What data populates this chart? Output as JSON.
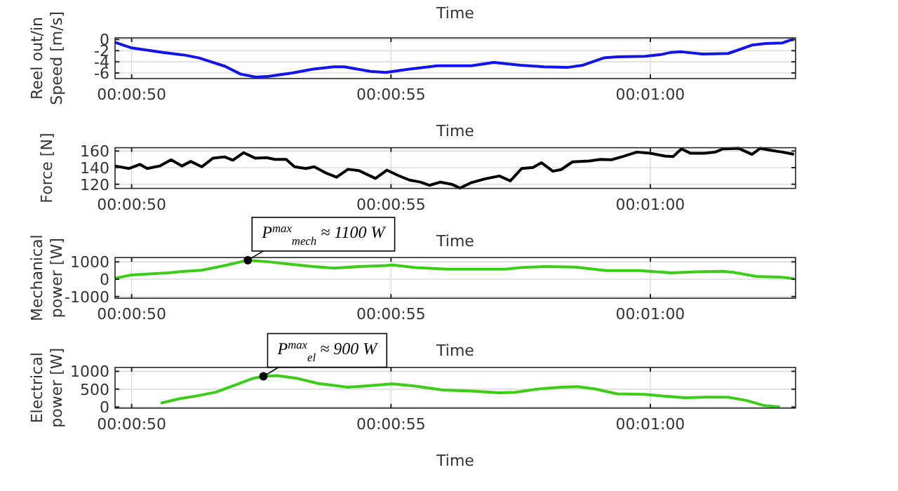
{
  "chart_data": [
    {
      "type": "line",
      "title": "Time",
      "xlabel": "Time",
      "ylabel": "Reel out/in\nSpeed [m/s]",
      "grid": true,
      "xlim": [
        49.68,
        62.8
      ],
      "xticks": [
        {
          "value": 50,
          "label": "00:00:50"
        },
        {
          "value": 55,
          "label": "00:00:55"
        },
        {
          "value": 60,
          "label": "00:01:00"
        }
      ],
      "ylim": [
        -7,
        0.3
      ],
      "yticks": [
        -6,
        -4,
        -2,
        0
      ],
      "x": [
        49.68,
        50,
        50.6,
        51.03,
        51.3,
        51.8,
        52.1,
        52.4,
        52.65,
        53.1,
        53.5,
        53.9,
        54.1,
        54.6,
        54.9,
        55.36,
        55.9,
        56.2,
        56.55,
        56.98,
        57.5,
        57.95,
        58.4,
        58.7,
        59.1,
        59.36,
        59.9,
        60.2,
        60.4,
        60.6,
        61,
        61.5,
        61.96,
        62.23,
        62.55,
        62.7,
        62.77
      ],
      "series": [
        {
          "color": "#1414e6",
          "values": [
            -0.5,
            -1.5,
            -2.3,
            -2.8,
            -3.3,
            -4.8,
            -6.2,
            -6.75,
            -6.6,
            -6,
            -5.3,
            -4.9,
            -4.9,
            -5.7,
            -5.9,
            -5.3,
            -4.7,
            -4.7,
            -4.7,
            -4.1,
            -4.6,
            -4.9,
            -5,
            -4.6,
            -3.3,
            -3.1,
            -3,
            -2.7,
            -2.3,
            -2.2,
            -2.6,
            -2.5,
            -1,
            -0.7,
            -0.6,
            -0.1,
            0
          ]
        }
      ]
    },
    {
      "type": "line",
      "xlabel": "Time",
      "ylabel": "Force [N]",
      "grid": true,
      "xlim": [
        49.68,
        62.8
      ],
      "xticks": [
        {
          "value": 50,
          "label": "00:00:50"
        },
        {
          "value": 55,
          "label": "00:00:55"
        },
        {
          "value": 60,
          "label": "00:01:00"
        }
      ],
      "ylim": [
        115,
        164
      ],
      "yticks": [
        120,
        140,
        160
      ],
      "x": [
        49.68,
        49.95,
        50.16,
        50.3,
        50.54,
        50.76,
        50.97,
        51.14,
        51.35,
        51.57,
        51.79,
        51.95,
        52.16,
        52.38,
        52.6,
        52.76,
        52.98,
        53.14,
        53.36,
        53.52,
        53.73,
        53.95,
        54.17,
        54.38,
        54.7,
        54.92,
        55.14,
        55.36,
        55.57,
        55.74,
        55.95,
        56.17,
        56.33,
        56.55,
        56.82,
        57.09,
        57.3,
        57.52,
        57.74,
        57.9,
        58.12,
        58.28,
        58.5,
        58.82,
        59.04,
        59.25,
        59.47,
        59.74,
        60,
        60.28,
        60.44,
        60.6,
        60.77,
        61.04,
        61.25,
        61.4,
        61.7,
        61.96,
        62.12,
        62.34,
        62.55,
        62.77
      ],
      "series": [
        {
          "color": "#000000",
          "values": [
            142,
            139,
            144,
            139,
            142,
            149.5,
            142,
            147.5,
            141,
            151.5,
            153,
            149,
            158,
            151.5,
            152,
            150,
            150,
            141,
            139,
            141,
            134,
            128.5,
            138,
            136.5,
            127,
            137,
            130.5,
            125,
            122.6,
            118.7,
            122.6,
            120,
            115.4,
            122,
            126.6,
            130,
            124,
            139,
            140.3,
            146,
            135.7,
            137.7,
            147,
            148,
            150,
            149.5,
            153.4,
            158.7,
            157.4,
            154,
            153.4,
            162.6,
            157.4,
            157.4,
            158.7,
            162.6,
            163.3,
            156,
            163.3,
            160.7,
            158.7,
            156
          ]
        }
      ]
    },
    {
      "type": "line",
      "xlabel": "Time",
      "ylabel": "Mechanical\npower [W]",
      "grid": true,
      "xlim": [
        49.68,
        62.8
      ],
      "xticks": [
        {
          "value": 50,
          "label": "00:00:50"
        },
        {
          "value": 55,
          "label": "00:00:55"
        },
        {
          "value": 60,
          "label": "00:01:00"
        }
      ],
      "ylim": [
        -1100,
        1250
      ],
      "yticks": [
        -1000,
        0,
        1000
      ],
      "annotations": [
        {
          "text": "P$^{max}$$_{mech}$ ≈ 1100 W",
          "x": 52.24,
          "y": 1100
        }
      ],
      "x": [
        49.68,
        50,
        50.7,
        51.03,
        51.35,
        51.8,
        52.24,
        52.65,
        53.1,
        53.5,
        53.9,
        54.38,
        54.92,
        55.03,
        55.47,
        56.1,
        56.66,
        57.2,
        57.5,
        57.95,
        58.55,
        58.82,
        59.15,
        59.8,
        60.4,
        60.9,
        61.4,
        61.6,
        62.07,
        62.5,
        62.77
      ],
      "series": [
        {
          "color": "#3dcc1a",
          "values": [
            50,
            250,
            370,
            460,
            520,
            790,
            1100,
            1000,
            850,
            730,
            640,
            730,
            790,
            820,
            670,
            580,
            580,
            580,
            670,
            730,
            700,
            610,
            500,
            500,
            370,
            430,
            460,
            400,
            150,
            120,
            30
          ]
        }
      ]
    },
    {
      "type": "line",
      "xlabel": "Time",
      "ylabel": "Electrical\npower [W]",
      "grid": true,
      "xlim": [
        49.68,
        62.8
      ],
      "xticks": [
        {
          "value": 50,
          "label": "00:00:50"
        },
        {
          "value": 55,
          "label": "00:00:55"
        },
        {
          "value": 60,
          "label": "00:01:00"
        }
      ],
      "ylim": [
        -30,
        1110
      ],
      "yticks": [
        0,
        500,
        1000
      ],
      "annotations": [
        {
          "text": "P$^{max}$$_{el}$ ≈ 900 W",
          "x": 52.54,
          "y": 860
        }
      ],
      "x": [
        50.56,
        50.92,
        51.24,
        51.62,
        52,
        52.33,
        52.54,
        52.8,
        53.2,
        53.6,
        54.17,
        54.6,
        55.03,
        55.47,
        56,
        56.55,
        57.09,
        57.4,
        57.85,
        58.28,
        58.6,
        58.93,
        59.36,
        59.9,
        60.23,
        60.66,
        61.1,
        61.5,
        61.85,
        62.18,
        62.5
      ],
      "series": [
        {
          "color": "#3dcc1a",
          "values": [
            108,
            230,
            308,
            415,
            616,
            800,
            860,
            880,
            800,
            660,
            555,
            600,
            650,
            585,
            477,
            447,
            400,
            415,
            508,
            555,
            570,
            508,
            370,
            354,
            308,
            262,
            277,
            277,
            185,
            46,
            0
          ]
        }
      ]
    }
  ]
}
